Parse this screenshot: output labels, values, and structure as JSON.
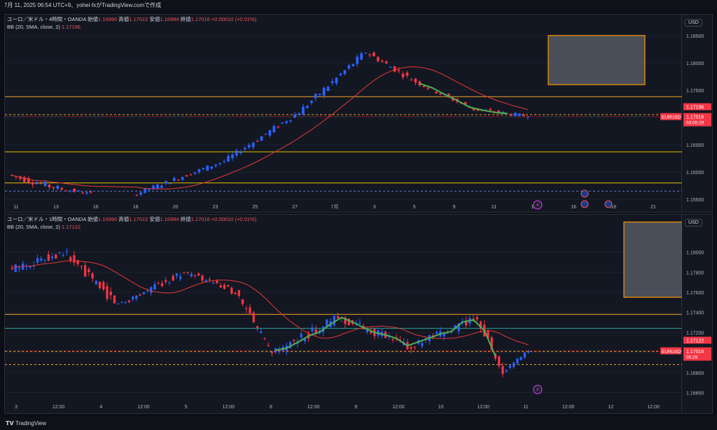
{
  "header": {
    "title": "7月 11, 2025 06:54 UTC+9、yohei-fxがTradingView.comで作成"
  },
  "footer": {
    "brand": "TradingView",
    "logo": "tradingview-logo-icon"
  },
  "colors": {
    "background": "#131722",
    "bull": "#2962ff",
    "bear": "#f23645",
    "bb_basis": "#e53935",
    "pattern": "#4caf50",
    "level_orange": "#f5a623",
    "level_yellow": "#e5c100",
    "level_green": "#26a69a",
    "price_label": "#f23645",
    "target_box": "#ff9800"
  },
  "charts": [
    {
      "legend": {
        "line1_prefix": "ユーロ／米ドル・4時間・OANDA",
        "o_label": "始値",
        "o_value": "1.16990",
        "h_label": "高値",
        "h_value": "1.17022",
        "l_label": "安値",
        "l_value": "1.16984",
        "c_label": "終値",
        "c_value": "1.17016",
        "change": "+0.00010 (+0.01%)",
        "bb_label": "BB (20, SMA, close, 2)",
        "bb_value": "1.17196"
      },
      "currency": "USD",
      "current_label": {
        "symbol": "EURUSD",
        "price": "1.17016",
        "countdown": "03:05:29"
      },
      "bb_label_price": "1.17196"
    },
    {
      "legend": {
        "line1_prefix": "ユーロ／米ドル・1時間・OANDA",
        "o_label": "始値",
        "o_value": "1.16990",
        "h_label": "高値",
        "h_value": "1.17022",
        "l_label": "安値",
        "l_value": "1.16984",
        "c_label": "終値",
        "c_value": "1.17016",
        "change": "+0.00010 (+0.01%)",
        "bb_label": "BB (20, SMA, close, 2)",
        "bb_value": "1.17122"
      },
      "currency": "USD",
      "current_label": {
        "symbol": "EURUSD",
        "price": "1.17016",
        "countdown": "05:29"
      },
      "bb_label_price": "1.17122"
    }
  ],
  "chart_data": [
    {
      "type": "candlestick",
      "timeframe": "4h",
      "y_ticks": [
        "1.18500",
        "1.18000",
        "1.17500",
        "1.17000",
        "1.16500",
        "1.16000",
        "1.15500"
      ],
      "ylim": [
        1.1545,
        1.186
      ],
      "x_ticks": [
        "11",
        "13",
        "16",
        "18",
        "20",
        "23",
        "25",
        "27",
        "7月",
        "3",
        "5",
        "9",
        "11",
        "14",
        "16",
        "18",
        "21"
      ],
      "horizontal_levels": [
        {
          "price": 1.1738,
          "color": "orange",
          "style": "solid"
        },
        {
          "price": 1.1705,
          "color": "orange",
          "style": "dashed"
        },
        {
          "price": 1.1637,
          "color": "yellow",
          "style": "solid"
        },
        {
          "price": 1.158,
          "color": "yellow",
          "style": "solid"
        },
        {
          "price": 1.1565,
          "color": "blue",
          "style": "dashed"
        }
      ],
      "target_zone": {
        "price_top": 1.185,
        "price_bottom": 1.176
      },
      "x_range": [
        0,
        135
      ],
      "segments": [
        {
          "i0": 0,
          "i1": 12,
          "p0": 1.1595,
          "p1": 1.157,
          "noise": 0.0012
        },
        {
          "i0": 12,
          "i1": 20,
          "p0": 1.157,
          "p1": 1.156,
          "noise": 0.0007
        },
        {
          "i0": 30,
          "i1": 52,
          "p0": 1.1558,
          "p1": 1.162,
          "noise": 0.0008
        },
        {
          "i0": 52,
          "i1": 70,
          "p0": 1.162,
          "p1": 1.171,
          "noise": 0.001
        },
        {
          "i0": 70,
          "i1": 86,
          "p0": 1.171,
          "p1": 1.182,
          "noise": 0.0012
        },
        {
          "i0": 86,
          "i1": 98,
          "p0": 1.182,
          "p1": 1.1765,
          "noise": 0.001
        },
        {
          "i0": 98,
          "i1": 112,
          "p0": 1.1765,
          "p1": 1.1715,
          "noise": 0.0008
        },
        {
          "i0": 112,
          "i1": 125,
          "p0": 1.1715,
          "p1": 1.1702,
          "noise": 0.0007
        }
      ],
      "last_close": 1.17016
    },
    {
      "type": "candlestick",
      "timeframe": "1h",
      "y_ticks": [
        "1.18000",
        "1.17800",
        "1.17600",
        "1.17400",
        "1.17200",
        "1.17000",
        "1.16800",
        "1.16600"
      ],
      "ylim": [
        1.1652,
        1.1822
      ],
      "x_ticks": [
        "3",
        "12:00",
        "4",
        "12:00",
        "5",
        "12:00",
        "8",
        "12:00",
        "9",
        "12:00",
        "10",
        "12:00",
        "11",
        "12:00",
        "12",
        "12:00"
      ],
      "horizontal_levels": [
        {
          "price": 1.1738,
          "color": "orange",
          "style": "solid"
        },
        {
          "price": 1.1724,
          "color": "green",
          "style": "solid"
        },
        {
          "price": 1.1701,
          "color": "orange",
          "style": "dashed"
        },
        {
          "price": 1.1688,
          "color": "orange",
          "style": "dashed"
        }
      ],
      "target_zone": {
        "price_top": 1.183,
        "price_bottom": 1.1755
      },
      "x_range": [
        0,
        155
      ],
      "segments": [
        {
          "i0": 0,
          "i1": 15,
          "p0": 1.1782,
          "p1": 1.18,
          "noise": 0.0008
        },
        {
          "i0": 15,
          "i1": 30,
          "p0": 1.18,
          "p1": 1.1748,
          "noise": 0.001
        },
        {
          "i0": 30,
          "i1": 48,
          "p0": 1.1748,
          "p1": 1.178,
          "noise": 0.0007
        },
        {
          "i0": 48,
          "i1": 62,
          "p0": 1.178,
          "p1": 1.176,
          "noise": 0.0006
        },
        {
          "i0": 62,
          "i1": 72,
          "p0": 1.176,
          "p1": 1.1698,
          "noise": 0.0009
        },
        {
          "i0": 72,
          "i1": 90,
          "p0": 1.1698,
          "p1": 1.1735,
          "noise": 0.0009
        },
        {
          "i0": 90,
          "i1": 110,
          "p0": 1.1735,
          "p1": 1.1705,
          "noise": 0.0009
        },
        {
          "i0": 110,
          "i1": 128,
          "p0": 1.1705,
          "p1": 1.1735,
          "noise": 0.0008
        },
        {
          "i0": 128,
          "i1": 135,
          "p0": 1.1735,
          "p1": 1.168,
          "noise": 0.001
        },
        {
          "i0": 135,
          "i1": 142,
          "p0": 1.168,
          "p1": 1.1702,
          "noise": 0.0004
        }
      ],
      "last_close": 1.17016
    }
  ]
}
